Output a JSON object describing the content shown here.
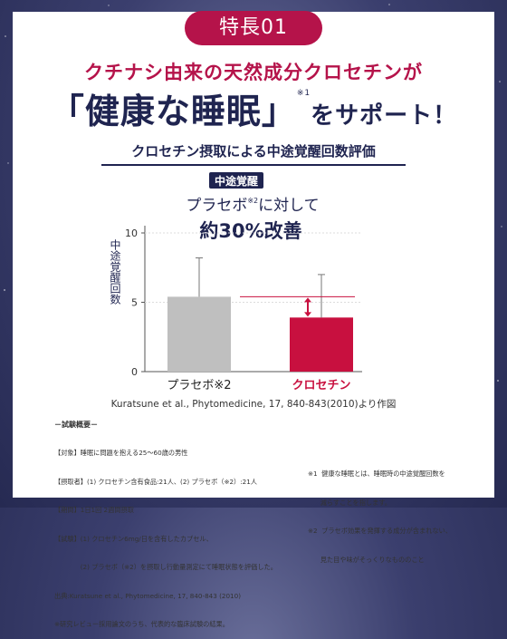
{
  "badge": "特長01",
  "headline_line1": "クチナシ由来の天然成分クロセチンが",
  "headline_line2_main": "「健康な睡眠」",
  "headline_line2_sup": "※1",
  "headline_line2_tail": "をサポート！",
  "subtitle": "クロセチン摂取による中途覚醒回数評価",
  "annotation": {
    "tag": "中途覚醒",
    "line1": "プラセボ",
    "line1_sup": "※2",
    "line1_tail": "に対して",
    "line2": "約30%改善"
  },
  "colors": {
    "accent": "#b5134a",
    "navy": "#1f2450",
    "placebo_bar": "#bfbfbf",
    "crocetin_bar": "#c8103f"
  },
  "chart_data": {
    "type": "bar",
    "title": "",
    "ylabel": "中途覚醒回数",
    "xlabel": "",
    "ylim": [
      0,
      10
    ],
    "yticks": [
      0,
      5,
      10
    ],
    "categories": [
      "プラセボ※2",
      "クロセチン"
    ],
    "values": [
      5.4,
      3.9
    ],
    "error_upper": [
      8.2,
      7.0
    ],
    "reference_line": 5.4
  },
  "citation": "Kuratsune et al., Phytomedicine, 17, 840-843(2010)より作図",
  "notes_title": "－試験概要－",
  "notes": [
    "【対象】睡眠に問題を抱える25〜60歳の男性",
    "【摂取者】(1) クロセチン含有食品:21人、(2) プラセボ（※2）:21人",
    "【期間】1日1回 2週間摂取",
    "【試験】(1) クロセチン6mg/日を含有したカプセル、",
    "　　　　(2) プラセボ（※2）を摂取し行動量測定にて睡眠状態を評価した。",
    "出典:Kuratsune et al., Phytomedicine, 17, 840-843 (2010)",
    "※研究レビュー採用論文のうち、代表的な臨床試験の結果。"
  ],
  "footnotes": [
    "※1  健康な睡眠とは、睡眠時の中途覚醒回数を",
    "      減らすことを指します。",
    "※2  プラセボ効果を発揮する成分が含まれない、",
    "      見た目や味がそっくりなもののこと"
  ]
}
